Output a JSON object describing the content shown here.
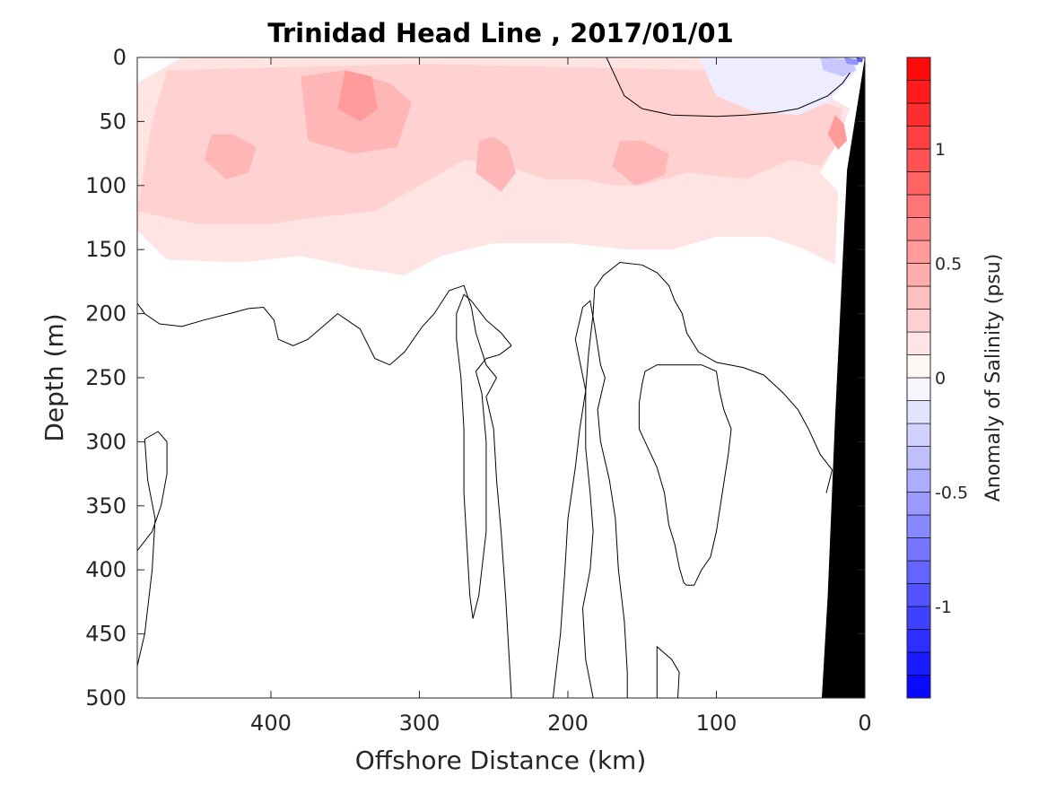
{
  "chart_data": {
    "type": "heatmap",
    "title": "Trinidad Head Line , 2017/01/01",
    "xlabel": "Offshore Distance (km)",
    "ylabel": "Depth (m)",
    "colorbar_label": "Anomaly of Salinity (psu)",
    "xlim": [
      490,
      0
    ],
    "ylim": [
      0,
      500
    ],
    "x_ticks": [
      400,
      300,
      200,
      100,
      0
    ],
    "y_ticks": [
      0,
      50,
      100,
      150,
      200,
      250,
      300,
      350,
      400,
      450,
      500
    ],
    "colorbar_range": [
      -1.4,
      1.4
    ],
    "colorbar_ticks": [
      -1,
      -0.5,
      0,
      0.5,
      1
    ],
    "colorbar_levels": 28,
    "colormap": {
      "negative": "#0000ff",
      "zero": "#ffffff",
      "positive": "#ff0000"
    },
    "bathymetry_color": "#000000",
    "anomaly_patches": [
      {
        "level": 0.15,
        "polygon": [
          [
            490,
            20
          ],
          [
            490,
            135
          ],
          [
            470,
            158
          ],
          [
            420,
            160
          ],
          [
            380,
            155
          ],
          [
            340,
            165
          ],
          [
            310,
            170
          ],
          [
            285,
            155
          ],
          [
            250,
            145
          ],
          [
            200,
            145
          ],
          [
            160,
            150
          ],
          [
            130,
            150
          ],
          [
            100,
            140
          ],
          [
            65,
            140
          ],
          [
            40,
            150
          ],
          [
            20,
            162
          ],
          [
            18,
            105
          ],
          [
            30,
            90
          ],
          [
            20,
            70
          ],
          [
            10,
            40
          ],
          [
            40,
            20
          ],
          [
            70,
            15
          ],
          [
            100,
            0
          ],
          [
            460,
            0
          ]
        ]
      },
      {
        "level": 0.25,
        "polygon": [
          [
            470,
            10
          ],
          [
            480,
            50
          ],
          [
            490,
            120
          ],
          [
            450,
            130
          ],
          [
            400,
            130
          ],
          [
            370,
            125
          ],
          [
            330,
            120
          ],
          [
            300,
            100
          ],
          [
            270,
            80
          ],
          [
            240,
            85
          ],
          [
            215,
            95
          ],
          [
            190,
            95
          ],
          [
            170,
            100
          ],
          [
            150,
            100
          ],
          [
            120,
            90
          ],
          [
            80,
            95
          ],
          [
            50,
            80
          ],
          [
            30,
            85
          ],
          [
            20,
            70
          ],
          [
            15,
            40
          ],
          [
            100,
            10
          ],
          [
            300,
            5
          ]
        ]
      },
      {
        "level": 0.4,
        "polygon": [
          [
            380,
            15
          ],
          [
            375,
            65
          ],
          [
            345,
            75
          ],
          [
            315,
            70
          ],
          [
            305,
            35
          ],
          [
            320,
            20
          ],
          [
            350,
            10
          ]
        ]
      },
      {
        "level": 0.4,
        "polygon": [
          [
            440,
            60
          ],
          [
            445,
            80
          ],
          [
            430,
            95
          ],
          [
            415,
            90
          ],
          [
            410,
            70
          ],
          [
            425,
            60
          ]
        ]
      },
      {
        "level": 0.4,
        "polygon": [
          [
            260,
            65
          ],
          [
            262,
            90
          ],
          [
            245,
            105
          ],
          [
            235,
            90
          ],
          [
            240,
            70
          ],
          [
            250,
            62
          ]
        ]
      },
      {
        "level": 0.4,
        "polygon": [
          [
            165,
            65
          ],
          [
            170,
            85
          ],
          [
            155,
            100
          ],
          [
            135,
            92
          ],
          [
            132,
            75
          ],
          [
            150,
            65
          ]
        ]
      },
      {
        "level": 0.55,
        "polygon": [
          [
            350,
            10
          ],
          [
            355,
            40
          ],
          [
            340,
            50
          ],
          [
            328,
            40
          ],
          [
            332,
            15
          ]
        ]
      },
      {
        "level": 0.55,
        "polygon": [
          [
            20,
            45
          ],
          [
            25,
            60
          ],
          [
            18,
            72
          ],
          [
            12,
            65
          ],
          [
            14,
            52
          ]
        ]
      },
      {
        "level": -0.1,
        "polygon": [
          [
            112,
            0
          ],
          [
            100,
            30
          ],
          [
            75,
            42
          ],
          [
            45,
            45
          ],
          [
            25,
            35
          ],
          [
            5,
            10
          ],
          [
            10,
            0
          ]
        ]
      },
      {
        "level": -0.3,
        "polygon": [
          [
            30,
            0
          ],
          [
            28,
            10
          ],
          [
            15,
            15
          ],
          [
            6,
            10
          ],
          [
            8,
            2
          ]
        ]
      },
      {
        "level": -0.6,
        "polygon": [
          [
            14,
            0
          ],
          [
            12,
            5
          ],
          [
            5,
            6
          ],
          [
            3,
            2
          ]
        ]
      },
      {
        "level": -0.9,
        "polygon": [
          [
            6,
            0
          ],
          [
            5,
            3
          ],
          [
            2,
            4
          ],
          [
            1,
            1
          ]
        ]
      }
    ],
    "bathymetry": [
      [
        0,
        0
      ],
      [
        0,
        500
      ],
      [
        29,
        500
      ],
      [
        25,
        420
      ],
      [
        20,
        280
      ],
      [
        12,
        88
      ],
      [
        0,
        0
      ]
    ],
    "zero_contours": [
      [
        [
          490,
          192
        ],
        [
          485,
          200
        ],
        [
          475,
          208
        ],
        [
          460,
          210
        ],
        [
          445,
          205
        ],
        [
          428,
          200
        ],
        [
          415,
          196
        ],
        [
          405,
          195
        ],
        [
          398,
          205
        ],
        [
          395,
          220
        ],
        [
          385,
          225
        ],
        [
          375,
          220
        ],
        [
          360,
          205
        ],
        [
          355,
          200
        ],
        [
          340,
          212
        ],
        [
          330,
          235
        ],
        [
          320,
          240
        ],
        [
          310,
          230
        ],
        [
          298,
          210
        ],
        [
          290,
          200
        ],
        [
          280,
          182
        ],
        [
          270,
          178
        ],
        [
          265,
          195
        ],
        [
          262,
          215
        ],
        [
          255,
          240
        ],
        [
          248,
          250
        ],
        [
          255,
          265
        ],
        [
          250,
          290
        ],
        [
          248,
          330
        ],
        [
          245,
          370
        ],
        [
          242,
          420
        ],
        [
          240,
          460
        ],
        [
          238,
          500
        ]
      ],
      [
        [
          490,
          385
        ],
        [
          480,
          370
        ],
        [
          474,
          350
        ],
        [
          470,
          325
        ],
        [
          470,
          300
        ],
        [
          476,
          292
        ],
        [
          485,
          298
        ],
        [
          483,
          330
        ],
        [
          478,
          360
        ],
        [
          480,
          400
        ],
        [
          485,
          450
        ],
        [
          492,
          485
        ],
        [
          494,
          500
        ]
      ],
      [
        [
          238,
          225
        ],
        [
          245,
          215
        ],
        [
          255,
          205
        ],
        [
          265,
          190
        ],
        [
          270,
          185
        ],
        [
          275,
          200
        ],
        [
          275,
          220
        ],
        [
          272,
          250
        ],
        [
          270,
          290
        ],
        [
          270,
          340
        ],
        [
          268,
          380
        ],
        [
          266,
          420
        ],
        [
          264,
          438
        ],
        [
          260,
          420
        ],
        [
          255,
          370
        ],
        [
          255,
          300
        ],
        [
          258,
          262
        ],
        [
          262,
          245
        ],
        [
          255,
          235
        ],
        [
          246,
          232
        ],
        [
          238,
          225
        ]
      ],
      [
        [
          183,
          500
        ],
        [
          188,
          470
        ],
        [
          190,
          430
        ],
        [
          185,
          400
        ],
        [
          183,
          370
        ],
        [
          185,
          340
        ],
        [
          188,
          305
        ],
        [
          188,
          260
        ],
        [
          195,
          220
        ],
        [
          190,
          195
        ],
        [
          185,
          190
        ],
        [
          182,
          210
        ],
        [
          178,
          240
        ],
        [
          175,
          250
        ],
        [
          180,
          275
        ],
        [
          178,
          300
        ],
        [
          172,
          330
        ],
        [
          168,
          360
        ],
        [
          166,
          400
        ],
        [
          162,
          440
        ],
        [
          160,
          480
        ],
        [
          160,
          500
        ]
      ],
      [
        [
          128,
          240
        ],
        [
          140,
          240
        ],
        [
          148,
          245
        ],
        [
          150,
          255
        ],
        [
          152,
          270
        ],
        [
          152,
          290
        ],
        [
          148,
          300
        ],
        [
          140,
          320
        ],
        [
          135,
          340
        ],
        [
          132,
          365
        ],
        [
          128,
          380
        ],
        [
          125,
          398
        ],
        [
          122,
          410
        ],
        [
          120,
          412
        ],
        [
          115,
          412
        ],
        [
          110,
          400
        ],
        [
          104,
          390
        ],
        [
          100,
          370
        ],
        [
          96,
          340
        ],
        [
          92,
          310
        ],
        [
          90,
          290
        ],
        [
          95,
          275
        ],
        [
          98,
          260
        ],
        [
          100,
          245
        ],
        [
          110,
          240
        ],
        [
          128,
          240
        ]
      ],
      [
        [
          140,
          500
        ],
        [
          140,
          460
        ],
        [
          130,
          470
        ],
        [
          125,
          480
        ],
        [
          126,
          500
        ]
      ],
      [
        [
          210,
          500
        ],
        [
          205,
          450
        ],
        [
          202,
          400
        ],
        [
          200,
          360
        ],
        [
          195,
          320
        ],
        [
          192,
          290
        ],
        [
          188,
          260
        ],
        [
          186,
          230
        ],
        [
          183,
          200
        ],
        [
          182,
          180
        ],
        [
          176,
          170
        ],
        [
          165,
          160
        ],
        [
          150,
          162
        ],
        [
          140,
          168
        ],
        [
          132,
          178
        ],
        [
          128,
          190
        ],
        [
          123,
          200
        ],
        [
          120,
          215
        ],
        [
          112,
          230
        ],
        [
          100,
          238
        ],
        [
          82,
          242
        ],
        [
          68,
          248
        ],
        [
          55,
          262
        ],
        [
          45,
          275
        ],
        [
          38,
          290
        ],
        [
          30,
          310
        ],
        [
          22,
          322
        ],
        [
          26,
          340
        ]
      ],
      [
        [
          174,
          0
        ],
        [
          170,
          10
        ],
        [
          162,
          30
        ],
        [
          150,
          40
        ],
        [
          130,
          45
        ],
        [
          100,
          46
        ],
        [
          80,
          45
        ],
        [
          60,
          43
        ],
        [
          45,
          40
        ],
        [
          25,
          30
        ],
        [
          15,
          20
        ],
        [
          10,
          12
        ]
      ]
    ]
  }
}
